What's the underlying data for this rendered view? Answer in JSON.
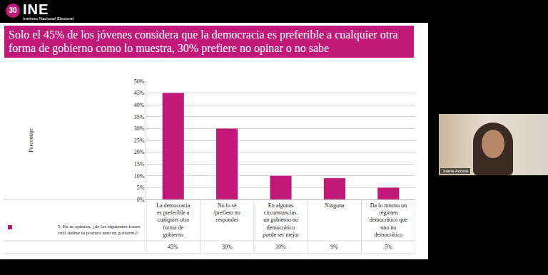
{
  "header": {
    "badge": "30",
    "name": "INE",
    "subtitle": "Instituto Nacional Electoral"
  },
  "chart_data": {
    "type": "bar",
    "title": "Solo el 45% de los jóvenes considera que la democracia es preferible a cualquier otra forma de gobierno como lo muestra, 30% prefiere no opinar o no sabe",
    "y_label": "Porcentaje",
    "categories": [
      "La democracia es preferible a cualquier otra forma de gobierno",
      "No lo sé /prefiero no responder",
      "En algunas circunstancias, un gobierno no democrático puede ser mejor",
      "Ninguna",
      "Da lo mismo un régimen democrático que uno no democrático"
    ],
    "values": [
      45,
      30,
      10,
      9,
      5
    ],
    "value_labels": [
      "45%",
      "30%",
      "10%",
      "9%",
      "5%"
    ],
    "series_name": "5. En tu opinión, ¿de las siguientes frases cuál define tu postura ante un gobierno?",
    "color": "#c2187a",
    "ylim": [
      0,
      50
    ],
    "yticks": [
      {
        "value": 0,
        "label": "0%"
      },
      {
        "value": 5,
        "label": "5%"
      },
      {
        "value": 10,
        "label": "10%"
      },
      {
        "value": 15,
        "label": "15%"
      },
      {
        "value": 20,
        "label": "20%"
      },
      {
        "value": 25,
        "label": "25%"
      },
      {
        "value": 30,
        "label": "30%"
      },
      {
        "value": 35,
        "label": "35%"
      },
      {
        "value": 40,
        "label": "40%"
      },
      {
        "value": 45,
        "label": "45%"
      },
      {
        "value": 50,
        "label": "50%"
      }
    ],
    "grid": true
  },
  "video": {
    "speaker": "Juana Acosta"
  }
}
